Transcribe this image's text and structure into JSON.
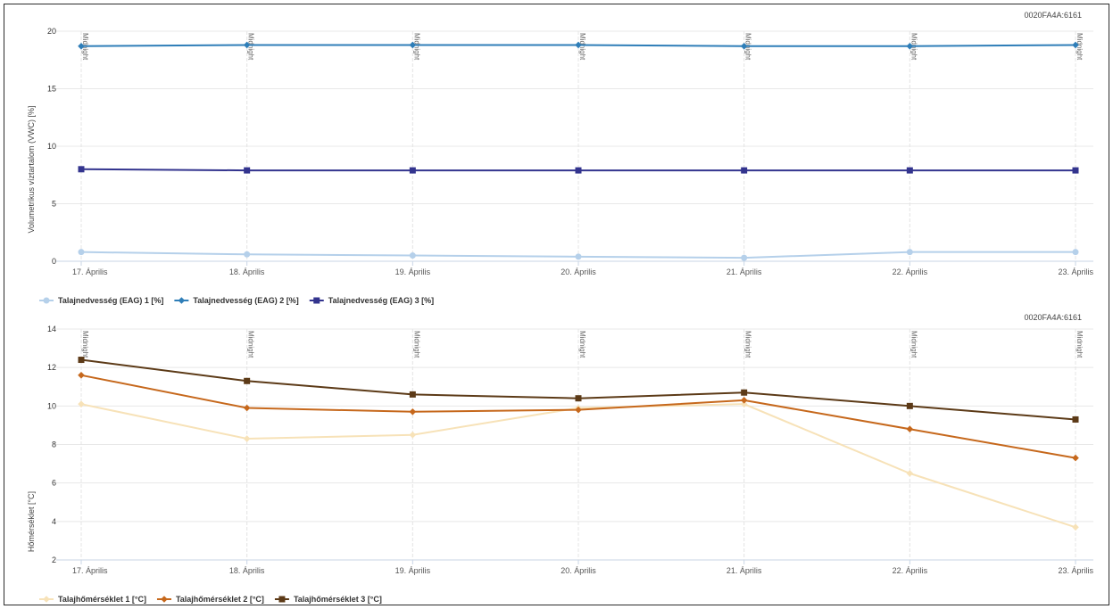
{
  "chart_data": [
    {
      "type": "line",
      "device_id": "0020FA4A:6161",
      "ylabel": "Volumetrikus víztartalom (VWC) [%]",
      "ylim": [
        0,
        20
      ],
      "yticks": [
        0,
        5,
        10,
        15,
        20
      ],
      "categories": [
        "17. Április",
        "18. Április",
        "19. Április",
        "20. Április",
        "21. Április",
        "22. Április",
        "23. Április"
      ],
      "vertical_marker_label": "Midnight",
      "grid": true,
      "legend_position": "bottom-left",
      "series": [
        {
          "name": "Talajnedvesség (EAG) 1 [%]",
          "color": "#b5d0ea",
          "marker": "circle",
          "values": [
            0.8,
            0.6,
            0.5,
            0.4,
            0.3,
            0.8,
            0.8
          ]
        },
        {
          "name": "Talajnedvesség (EAG) 2 [%]",
          "color": "#2f7eb8",
          "marker": "diamond",
          "values": [
            18.7,
            18.8,
            18.8,
            18.8,
            18.7,
            18.7,
            18.8
          ]
        },
        {
          "name": "Talajnedvesség (EAG) 3 [%]",
          "color": "#33348e",
          "marker": "square",
          "values": [
            8.0,
            7.9,
            7.9,
            7.9,
            7.9,
            7.9,
            7.9
          ]
        }
      ]
    },
    {
      "type": "line",
      "device_id": "0020FA4A:6161",
      "ylabel": "Hőmérséklet [°C]",
      "ylim": [
        2,
        14
      ],
      "yticks": [
        2,
        4,
        6,
        8,
        10,
        12,
        14
      ],
      "categories": [
        "17. Április",
        "18. Április",
        "19. Április",
        "20. Április",
        "21. Április",
        "22. Április",
        "23. Április"
      ],
      "vertical_marker_label": "Midnight",
      "grid": true,
      "legend_position": "bottom-left",
      "series": [
        {
          "name": "Talajhőmérséklet 1 [°C]",
          "color": "#f7e2b8",
          "marker": "diamond",
          "values": [
            10.1,
            8.3,
            8.5,
            9.9,
            10.1,
            6.5,
            3.7
          ]
        },
        {
          "name": "Talajhőmérséklet 2 [°C]",
          "color": "#c6681c",
          "marker": "diamond",
          "values": [
            11.6,
            9.9,
            9.7,
            9.8,
            10.3,
            8.8,
            7.3
          ]
        },
        {
          "name": "Talajhőmérséklet 3 [°C]",
          "color": "#5c3a17",
          "marker": "square",
          "values": [
            12.4,
            11.3,
            10.6,
            10.4,
            10.7,
            10.0,
            9.3
          ]
        }
      ]
    }
  ]
}
